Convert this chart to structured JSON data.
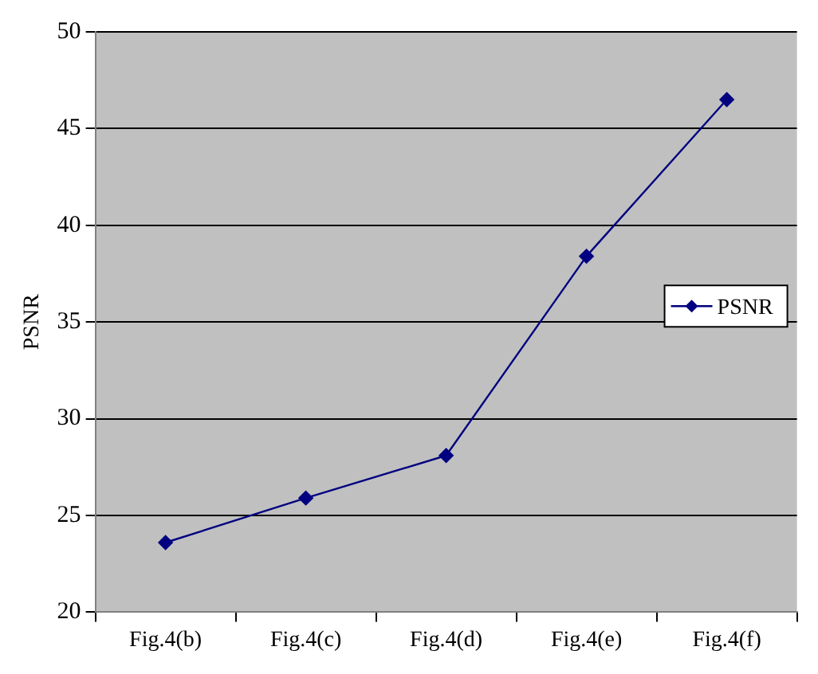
{
  "chart_data": {
    "type": "line",
    "ylabel": "PSNR",
    "categories": [
      "Fig.4(b)",
      "Fig.4(c)",
      "Fig.4(d)",
      "Fig.4(e)",
      "Fig.4(f)"
    ],
    "series": [
      {
        "name": "PSNR",
        "color": "#000080",
        "values": [
          23.6,
          25.9,
          28.1,
          38.4,
          46.5
        ]
      }
    ],
    "ylim": [
      20,
      50
    ],
    "yticks": [
      20,
      25,
      30,
      35,
      40,
      45,
      50
    ],
    "grid": "y",
    "legend": "right",
    "marker": "diamond",
    "line_style": "solid"
  }
}
